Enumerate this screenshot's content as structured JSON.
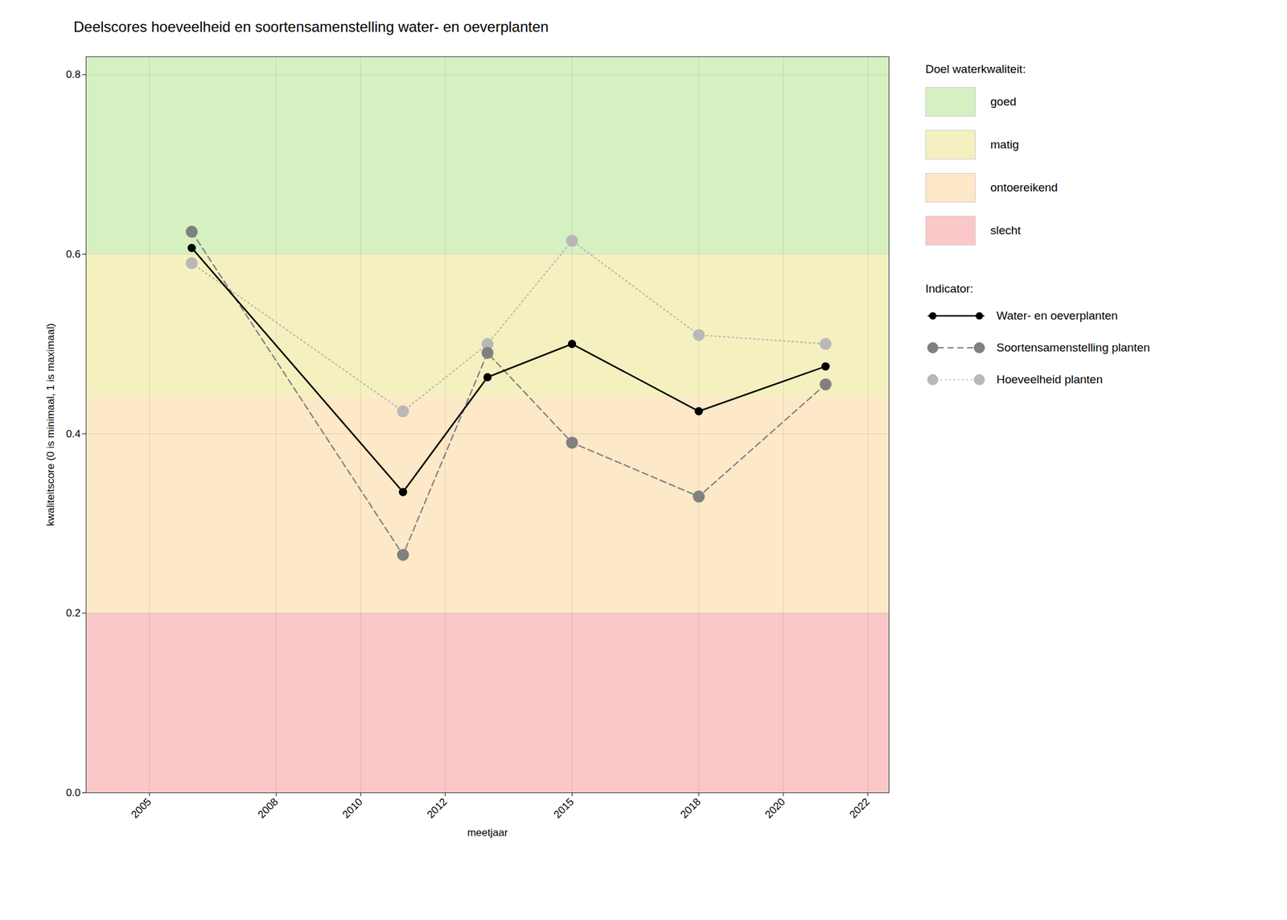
{
  "chart_data": {
    "type": "line",
    "title": "Deelscores hoeveelheid en soortensamenstelling water- en oeverplanten",
    "x_label": "meetjaar",
    "y_label": "kwaliteitscore (0 is minimaal, 1 is maximaal)",
    "x": [
      2006,
      2011,
      2013,
      2015,
      2018,
      2021
    ],
    "series": [
      {
        "name": "Water- en oeverplanten",
        "color": "#000000",
        "line_style": "solid",
        "marker": "circle",
        "values": [
          0.607,
          0.335,
          0.463,
          0.5,
          0.425,
          0.475
        ]
      },
      {
        "name": "Soortensamenstelling planten",
        "color": "#808080",
        "line_style": "dashed",
        "marker": "circle",
        "values": [
          0.625,
          0.265,
          0.49,
          0.39,
          0.33,
          0.455
        ]
      },
      {
        "name": "Hoeveelheid planten",
        "color": "#b8b8b8",
        "line_style": "dotted",
        "marker": "circle",
        "values": [
          0.59,
          0.425,
          0.5,
          0.615,
          0.51,
          0.5
        ]
      }
    ],
    "xlim": [
      2003.5,
      2022.5
    ],
    "ylim": [
      0.0,
      0.82
    ],
    "xticks": [
      2005,
      2008,
      2010,
      2012,
      2015,
      2018,
      2020,
      2022
    ],
    "yticks": [
      {
        "value": 0.0,
        "label": "0.0"
      },
      0.2,
      0.4,
      0.6,
      0.8
    ],
    "grid": true,
    "legend": "right",
    "legend_title": "Indicator:",
    "bands_title": "Doel waterkwaliteit:",
    "bands": [
      {
        "name": "goed",
        "ymin": 0.6,
        "ymax": 0.82,
        "color": "#d5f0c1"
      },
      {
        "name": "matig",
        "ymin": 0.44,
        "ymax": 0.6,
        "color": "#f5f0c0"
      },
      {
        "name": "ontoereikend",
        "ymin": 0.2,
        "ymax": 0.44,
        "color": "#fde8c8"
      },
      {
        "name": "slecht",
        "ymin": 0.0,
        "ymax": 0.2,
        "color": "#fac8c8"
      }
    ]
  }
}
